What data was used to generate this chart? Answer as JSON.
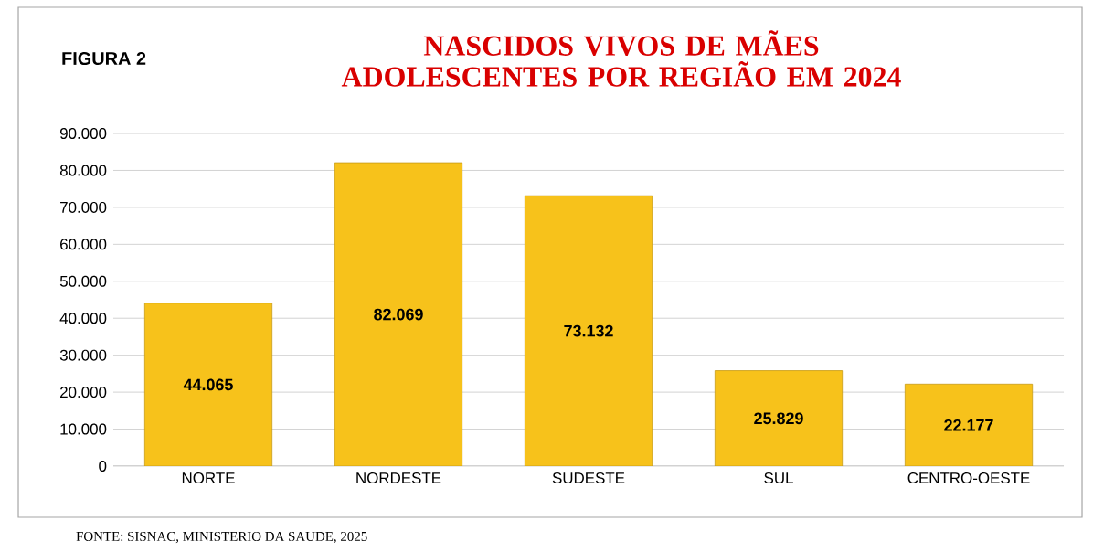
{
  "chart_data": {
    "type": "bar",
    "title": "NASCIDOS VIVOS  DE MÃES ADOLESCENTES POR REGIÃO EM 2024",
    "categories": [
      "NORTE",
      "NORDESTE",
      "SUDESTE",
      "SUL",
      "CENTRO-OESTE"
    ],
    "values": [
      44065,
      82069,
      73132,
      25829,
      22177
    ],
    "value_labels": [
      "44.065",
      "82.069",
      "73.132",
      "25.829",
      "22.177"
    ],
    "color": "#f7c21b",
    "ylim": [
      0,
      90000
    ],
    "yticks": [
      {
        "value": 0,
        "label": "0"
      },
      {
        "value": 10000,
        "label": "10.000"
      },
      {
        "value": 20000,
        "label": "20.000"
      },
      {
        "value": 30000,
        "label": "30.000"
      },
      {
        "value": 40000,
        "label": "40.000"
      },
      {
        "value": 50000,
        "label": "50.000"
      },
      {
        "value": 60000,
        "label": "60.000"
      },
      {
        "value": 70000,
        "label": "70.000"
      },
      {
        "value": 80000,
        "label": "80.000"
      },
      {
        "value": 90000,
        "label": "90.000"
      }
    ],
    "grid": "y",
    "annotations": [
      "FIGURA 2",
      "FONTE: SISNAC, MINISTERIO DA SAUDE, 2025"
    ]
  }
}
